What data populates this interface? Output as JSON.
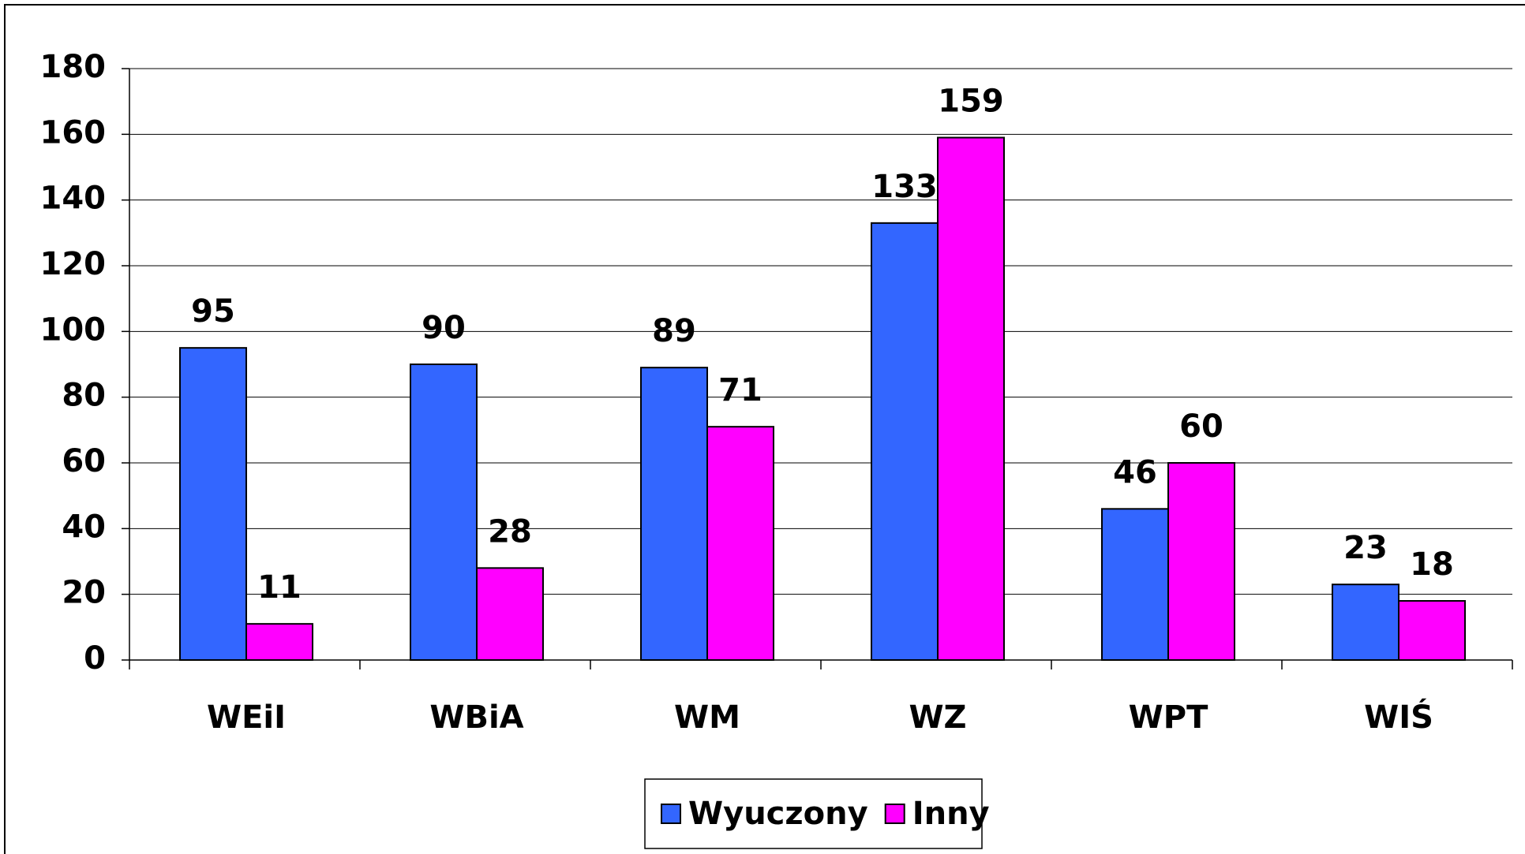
{
  "chart_data": {
    "type": "bar",
    "categories": [
      "WEiI",
      "WBiA",
      "WM",
      "WZ",
      "WPT",
      "WIŚ"
    ],
    "series": [
      {
        "name": "Wyuczony",
        "color": "#3366ff",
        "values": [
          95,
          90,
          89,
          133,
          46,
          23
        ]
      },
      {
        "name": "Inny",
        "color": "#ff00ff",
        "values": [
          11,
          28,
          71,
          159,
          60,
          18
        ]
      }
    ],
    "ylim": [
      0,
      180
    ],
    "yticks": [
      0,
      20,
      40,
      60,
      80,
      100,
      120,
      140,
      160,
      180
    ],
    "grid": true,
    "legend": "bottom"
  }
}
